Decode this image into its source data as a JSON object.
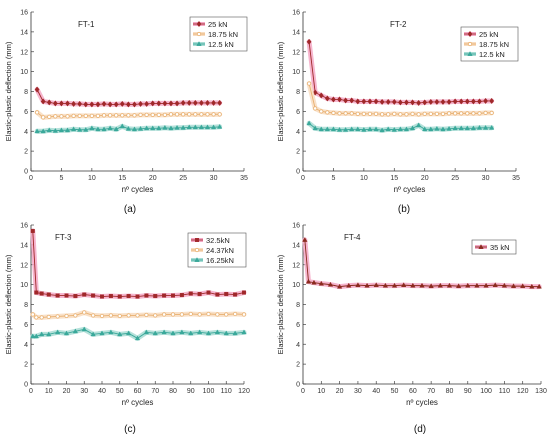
{
  "chart_data": [
    {
      "type": "line",
      "panel_label": "(a)",
      "title": "FT-1",
      "xlabel": "nº cycles",
      "ylabel": "Elastic-plastic deflection (mm)",
      "xlim": [
        0,
        35
      ],
      "ylim": [
        0,
        16
      ],
      "xticks": [
        0,
        5,
        10,
        15,
        20,
        25,
        30,
        35
      ],
      "yticks": [
        0,
        2,
        4,
        6,
        8,
        10,
        12,
        14,
        16
      ],
      "legend_position": "top-right",
      "series": [
        {
          "name": "25 kN",
          "color": "#a0282a",
          "marker": "diamond",
          "shade": "#f4a8c6",
          "x": [
            1,
            2,
            3,
            4,
            5,
            6,
            7,
            8,
            9,
            10,
            11,
            12,
            13,
            14,
            15,
            16,
            17,
            18,
            19,
            20,
            21,
            22,
            23,
            24,
            25,
            26,
            27,
            28,
            29,
            30,
            31
          ],
          "y": [
            8.2,
            7.0,
            6.9,
            6.8,
            6.8,
            6.8,
            6.75,
            6.75,
            6.7,
            6.7,
            6.7,
            6.75,
            6.7,
            6.7,
            6.75,
            6.7,
            6.7,
            6.75,
            6.75,
            6.8,
            6.8,
            6.8,
            6.8,
            6.8,
            6.85,
            6.85,
            6.85,
            6.85,
            6.85,
            6.85,
            6.85
          ]
        },
        {
          "name": "18.75 kN",
          "color": "#e8b070",
          "marker": "circle",
          "shade": "#f8dcc0",
          "x": [
            1,
            2,
            3,
            4,
            5,
            6,
            7,
            8,
            9,
            10,
            11,
            12,
            13,
            14,
            15,
            16,
            17,
            18,
            19,
            20,
            21,
            22,
            23,
            24,
            25,
            26,
            27,
            28,
            29,
            30,
            31
          ],
          "y": [
            5.9,
            5.4,
            5.45,
            5.5,
            5.5,
            5.5,
            5.55,
            5.55,
            5.55,
            5.55,
            5.55,
            5.6,
            5.6,
            5.6,
            5.6,
            5.6,
            5.6,
            5.65,
            5.65,
            5.65,
            5.65,
            5.65,
            5.7,
            5.7,
            5.7,
            5.7,
            5.7,
            5.7,
            5.7,
            5.7,
            5.7
          ]
        },
        {
          "name": "12.5 kN",
          "color": "#3aa89a",
          "marker": "triangle",
          "shade": "#a8dcd4",
          "x": [
            1,
            2,
            3,
            4,
            5,
            6,
            7,
            8,
            9,
            10,
            11,
            12,
            13,
            14,
            15,
            16,
            17,
            18,
            19,
            20,
            21,
            22,
            23,
            24,
            25,
            26,
            27,
            28,
            29,
            30,
            31
          ],
          "y": [
            4.0,
            4.0,
            4.1,
            4.05,
            4.1,
            4.1,
            4.2,
            4.15,
            4.15,
            4.3,
            4.2,
            4.2,
            4.3,
            4.2,
            4.5,
            4.25,
            4.2,
            4.25,
            4.3,
            4.3,
            4.3,
            4.35,
            4.3,
            4.35,
            4.35,
            4.4,
            4.4,
            4.4,
            4.4,
            4.4,
            4.45
          ]
        }
      ]
    },
    {
      "type": "line",
      "panel_label": "(b)",
      "title": "FT-2",
      "xlabel": "nº cycles",
      "ylabel": "Elastic-plastic deflection (mm)",
      "xlim": [
        0,
        35
      ],
      "ylim": [
        0,
        16
      ],
      "xticks": [
        0,
        5,
        10,
        15,
        20,
        25,
        30,
        35
      ],
      "yticks": [
        0,
        2,
        4,
        6,
        8,
        10,
        12,
        14,
        16
      ],
      "legend_position": "top-right",
      "series": [
        {
          "name": "25 kN",
          "color": "#a0282a",
          "marker": "diamond",
          "shade": "#f4a8c6",
          "x": [
            1,
            2,
            3,
            4,
            5,
            6,
            7,
            8,
            9,
            10,
            11,
            12,
            13,
            14,
            15,
            16,
            17,
            18,
            19,
            20,
            21,
            22,
            23,
            24,
            25,
            26,
            27,
            28,
            29,
            30,
            31
          ],
          "y": [
            13.0,
            7.9,
            7.6,
            7.3,
            7.2,
            7.2,
            7.1,
            7.1,
            7.0,
            7.0,
            7.0,
            7.0,
            6.95,
            6.95,
            6.95,
            6.9,
            6.9,
            6.9,
            6.85,
            6.9,
            6.95,
            6.95,
            6.95,
            6.95,
            7.0,
            7.0,
            7.0,
            7.0,
            7.0,
            7.05,
            7.05
          ]
        },
        {
          "name": "18.75 kN",
          "color": "#e8b070",
          "marker": "circle",
          "shade": "#f8dcc0",
          "x": [
            1,
            2,
            3,
            4,
            5,
            6,
            7,
            8,
            9,
            10,
            11,
            12,
            13,
            14,
            15,
            16,
            17,
            18,
            19,
            20,
            21,
            22,
            23,
            24,
            25,
            26,
            27,
            28,
            29,
            30,
            31
          ],
          "y": [
            8.8,
            6.3,
            6.0,
            5.9,
            5.85,
            5.8,
            5.8,
            5.8,
            5.75,
            5.75,
            5.75,
            5.75,
            5.7,
            5.7,
            5.75,
            5.7,
            5.7,
            5.75,
            5.7,
            5.75,
            5.75,
            5.75,
            5.75,
            5.8,
            5.8,
            5.8,
            5.8,
            5.8,
            5.8,
            5.85,
            5.85
          ]
        },
        {
          "name": "12.5 kN",
          "color": "#3aa89a",
          "marker": "triangle",
          "shade": "#a8dcd4",
          "x": [
            1,
            2,
            3,
            4,
            5,
            6,
            7,
            8,
            9,
            10,
            11,
            12,
            13,
            14,
            15,
            16,
            17,
            18,
            19,
            20,
            21,
            22,
            23,
            24,
            25,
            26,
            27,
            28,
            29,
            30,
            31
          ],
          "y": [
            4.8,
            4.3,
            4.2,
            4.2,
            4.2,
            4.15,
            4.15,
            4.2,
            4.2,
            4.15,
            4.2,
            4.2,
            4.1,
            4.2,
            4.15,
            4.2,
            4.2,
            4.3,
            4.6,
            4.2,
            4.2,
            4.25,
            4.2,
            4.25,
            4.3,
            4.3,
            4.3,
            4.3,
            4.35,
            4.35,
            4.35
          ]
        }
      ]
    },
    {
      "type": "line",
      "panel_label": "(c)",
      "title": "FT-3",
      "xlabel": "nº cycles",
      "ylabel": "Elastic-plastic deflection (mm)",
      "xlim": [
        0,
        120
      ],
      "ylim": [
        0,
        16
      ],
      "xticks": [
        0,
        10,
        20,
        30,
        40,
        50,
        60,
        70,
        80,
        90,
        100,
        110,
        120
      ],
      "yticks": [
        0,
        2,
        4,
        6,
        8,
        10,
        12,
        14,
        16
      ],
      "legend_position": "top-right",
      "series": [
        {
          "name": "32.5kN",
          "color": "#a0282a",
          "marker": "square",
          "shade": "#f4a8c6",
          "x": [
            1,
            3,
            6,
            10,
            15,
            20,
            25,
            30,
            35,
            40,
            45,
            50,
            55,
            60,
            65,
            70,
            75,
            80,
            85,
            90,
            95,
            100,
            105,
            110,
            115,
            120
          ],
          "y": [
            15.4,
            9.2,
            9.1,
            9.0,
            8.9,
            8.9,
            8.85,
            9.0,
            8.9,
            8.8,
            8.85,
            8.8,
            8.85,
            8.8,
            8.9,
            8.85,
            8.9,
            8.9,
            8.95,
            9.1,
            9.05,
            9.2,
            9.0,
            9.05,
            9.0,
            9.2
          ]
        },
        {
          "name": "24.37kN",
          "color": "#e8b070",
          "marker": "circle",
          "shade": "#f8dcc0",
          "x": [
            1,
            3,
            6,
            10,
            15,
            20,
            25,
            30,
            35,
            40,
            45,
            50,
            55,
            60,
            65,
            70,
            75,
            80,
            85,
            90,
            95,
            100,
            105,
            110,
            115,
            120
          ],
          "y": [
            7.0,
            6.7,
            6.7,
            6.75,
            6.8,
            6.85,
            6.9,
            7.2,
            6.9,
            6.85,
            6.9,
            6.85,
            6.9,
            6.9,
            6.95,
            6.9,
            7.0,
            7.0,
            7.0,
            7.05,
            7.0,
            7.05,
            7.0,
            7.0,
            7.05,
            7.0
          ]
        },
        {
          "name": "16.25kN",
          "color": "#3aa89a",
          "marker": "triangle",
          "shade": "#a8dcd4",
          "x": [
            1,
            3,
            6,
            10,
            15,
            20,
            25,
            30,
            35,
            40,
            45,
            50,
            55,
            60,
            65,
            70,
            75,
            80,
            85,
            90,
            95,
            100,
            105,
            110,
            115,
            120
          ],
          "y": [
            4.8,
            4.8,
            5.0,
            5.0,
            5.2,
            5.1,
            5.3,
            5.5,
            5.0,
            5.1,
            5.2,
            5.0,
            5.1,
            4.6,
            5.2,
            5.1,
            5.2,
            5.1,
            5.2,
            5.1,
            5.2,
            5.1,
            5.2,
            5.1,
            5.1,
            5.2
          ]
        }
      ]
    },
    {
      "type": "line",
      "panel_label": "(d)",
      "title": "FT-4",
      "xlabel": "nº cycles",
      "ylabel": "Elastic-plastic deflection (mm)",
      "xlim": [
        0,
        130
      ],
      "ylim": [
        0,
        16
      ],
      "xticks": [
        0,
        10,
        20,
        30,
        40,
        50,
        60,
        70,
        80,
        90,
        100,
        110,
        120,
        130
      ],
      "yticks": [
        0,
        2,
        4,
        6,
        8,
        10,
        12,
        14,
        16
      ],
      "legend_position": "top-right",
      "series": [
        {
          "name": "35 kN",
          "color": "#8a2a1e",
          "marker": "triangle",
          "shade": "#f4a8c6",
          "x": [
            1,
            3,
            6,
            10,
            15,
            20,
            25,
            30,
            35,
            40,
            45,
            50,
            55,
            60,
            65,
            70,
            75,
            80,
            85,
            90,
            95,
            100,
            105,
            110,
            115,
            120,
            125,
            129
          ],
          "y": [
            14.5,
            10.3,
            10.2,
            10.1,
            10.0,
            9.8,
            9.9,
            9.95,
            9.9,
            9.95,
            9.9,
            9.9,
            9.95,
            9.9,
            9.9,
            9.85,
            9.9,
            9.9,
            9.85,
            9.9,
            9.9,
            9.9,
            9.95,
            9.9,
            9.85,
            9.85,
            9.8,
            9.8
          ]
        }
      ]
    }
  ]
}
